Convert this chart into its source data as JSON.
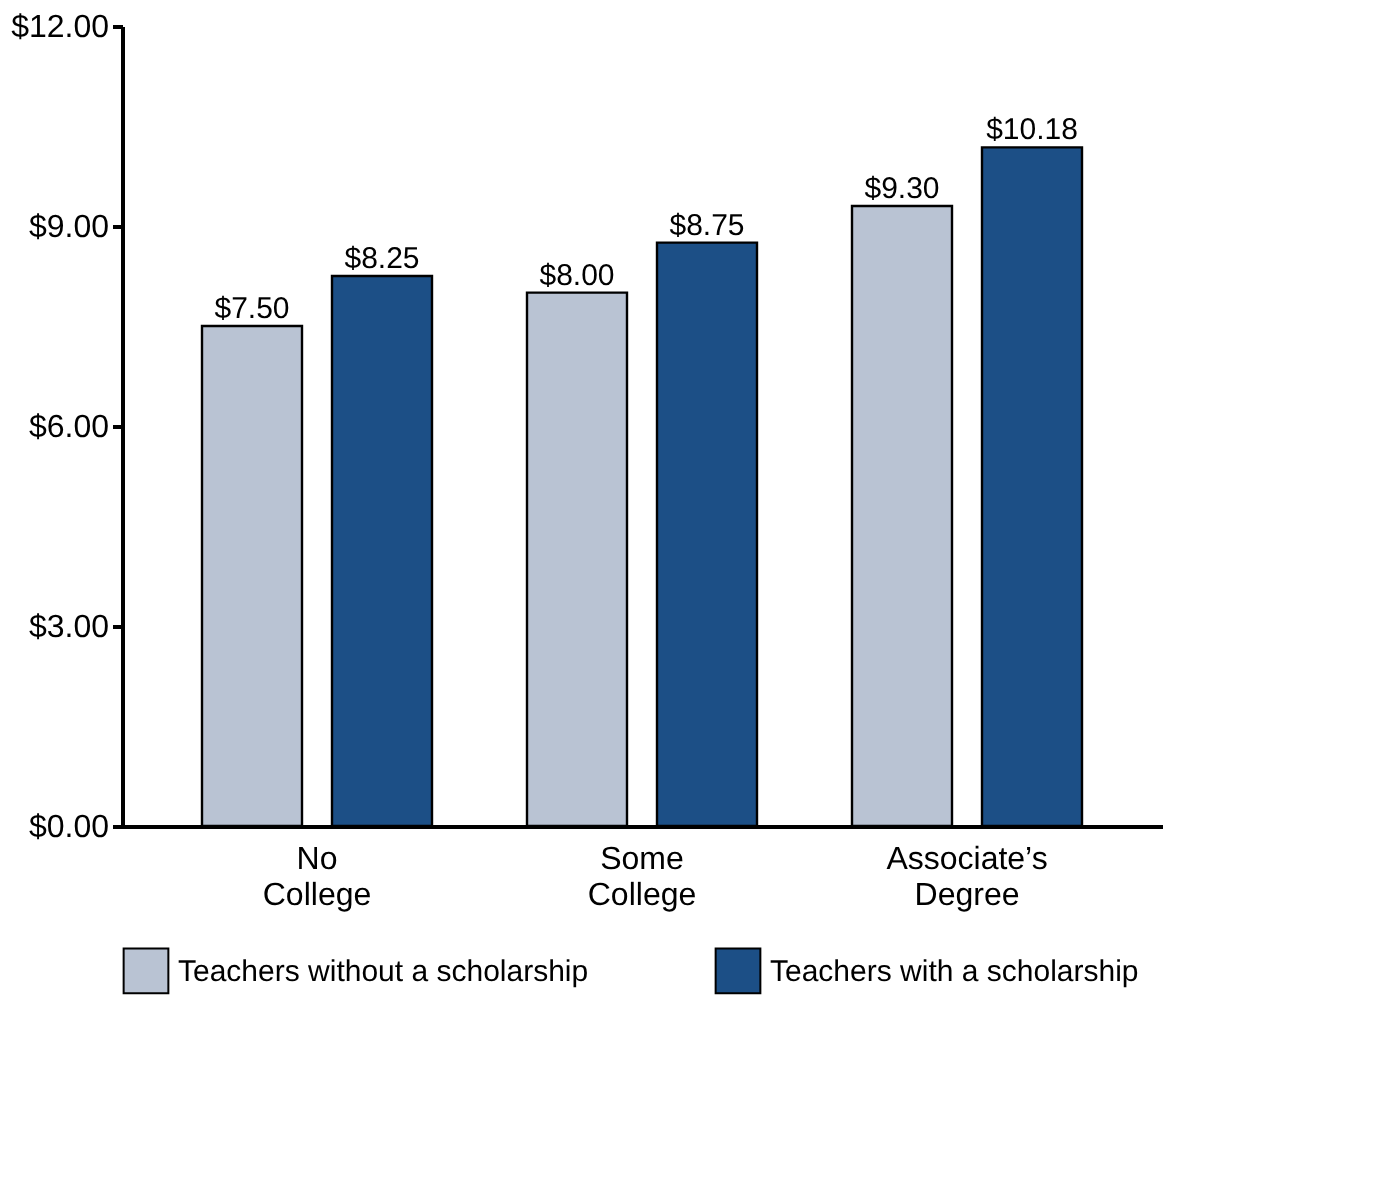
{
  "chart_data": {
    "type": "bar",
    "categories": [
      "No College",
      "Some College",
      "Associate’s Degree"
    ],
    "series": [
      {
        "name": "Teachers without a scholarship",
        "color": "#b9c3d3",
        "values": [
          7.5,
          8.0,
          9.3
        ]
      },
      {
        "name": "Teachers with a scholarship",
        "color": "#1c4f86",
        "values": [
          8.25,
          8.75,
          10.18
        ]
      }
    ],
    "ylim": [
      0,
      12
    ],
    "yticks": [
      {
        "value": 0,
        "label": "$0.00"
      },
      {
        "value": 3,
        "label": "$3.00"
      },
      {
        "value": 6,
        "label": "$6.00"
      },
      {
        "value": 9,
        "label": "$9.00"
      },
      {
        "value": 12,
        "label": "$12.00"
      }
    ],
    "value_labels": [
      [
        "$7.50",
        "$8.00",
        "$9.30"
      ],
      [
        "$8.25",
        "$8.75",
        "$10.18"
      ]
    ],
    "grid": false,
    "legend": "bottom"
  }
}
